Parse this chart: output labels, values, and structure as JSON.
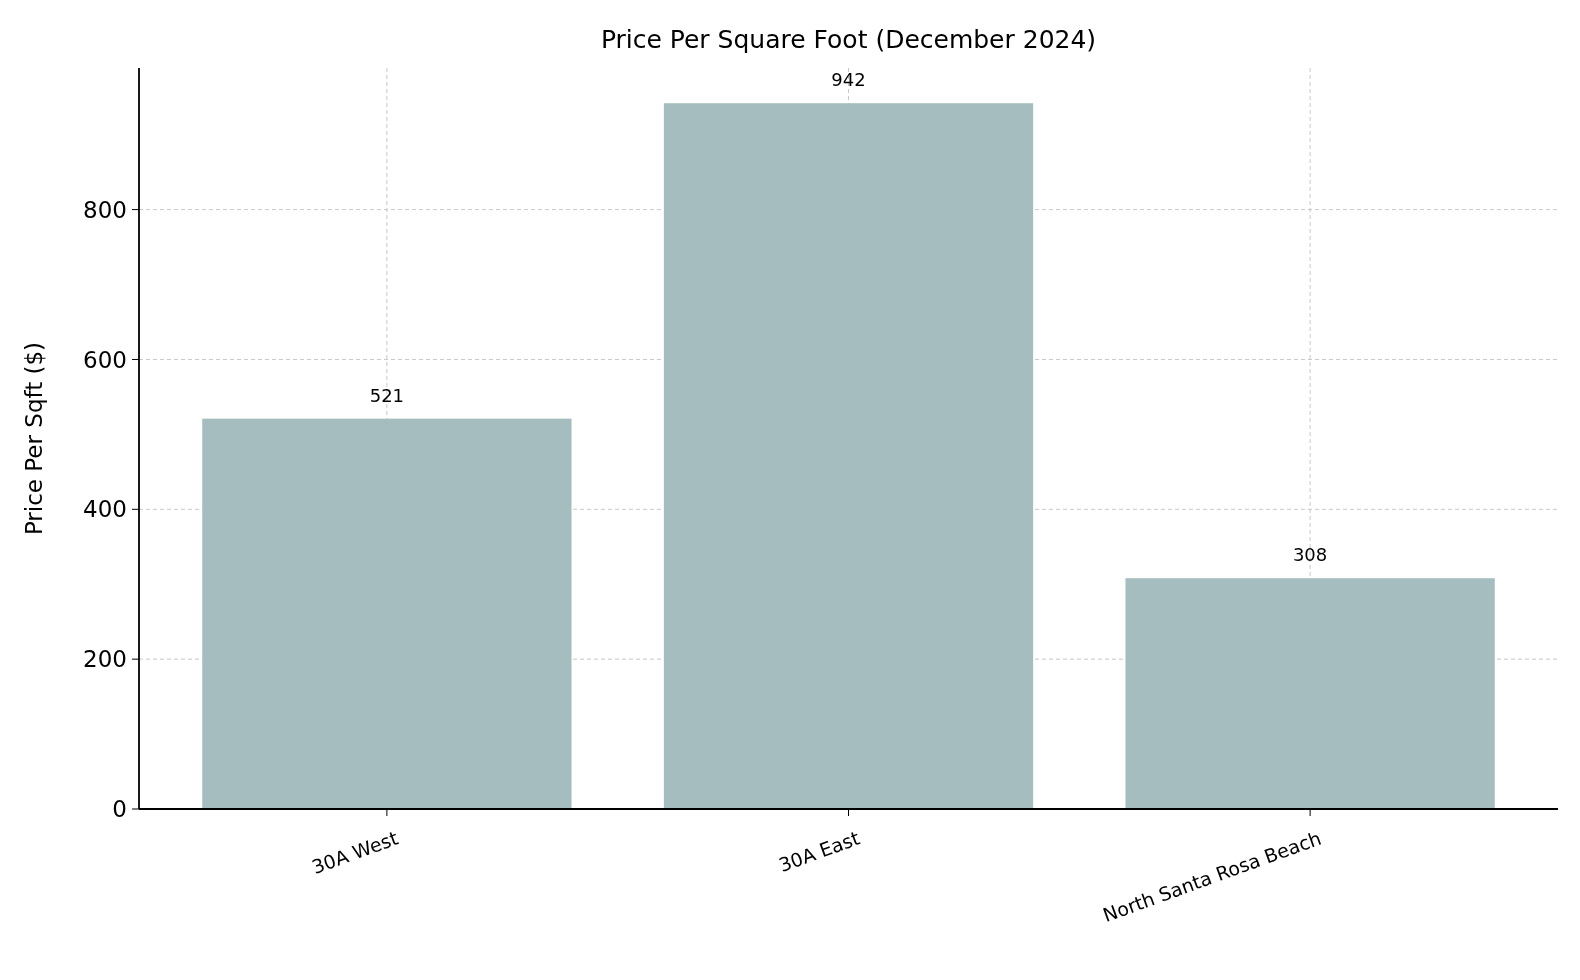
{
  "chart_data": {
    "type": "bar",
    "title": "Price Per Square Foot (December 2024)",
    "ylabel": "Price Per Sqft ($)",
    "categories": [
      "30A West",
      "30A East",
      "North Santa Rosa Beach"
    ],
    "values": [
      521,
      942,
      308
    ],
    "color": "#a5bdbe",
    "ylim": [
      0,
      989
    ],
    "yticks": [
      0,
      200,
      400,
      600,
      800
    ],
    "grid": true,
    "data_labels": true
  }
}
